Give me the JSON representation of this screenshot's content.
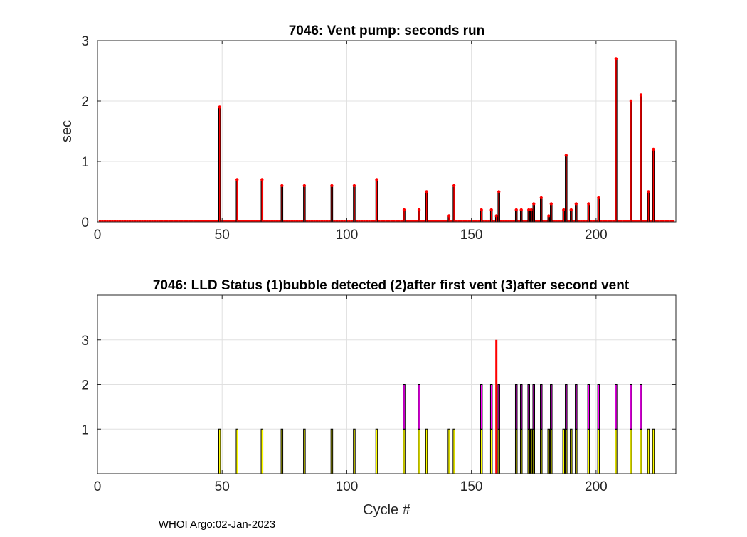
{
  "footer": "WHOI Argo:02-Jan-2023",
  "chart_data": [
    {
      "type": "bar",
      "title": "7046: Vent pump: seconds run",
      "xlabel": "",
      "ylabel": "sec",
      "xlim": [
        0,
        232
      ],
      "ylim": [
        0,
        3
      ],
      "xticks": [
        0,
        50,
        100,
        150,
        200
      ],
      "yticks": [
        0,
        1,
        2,
        3
      ],
      "grid": true,
      "cycle_range": [
        1,
        231
      ],
      "bar_color": "#ff0000",
      "marker_color": "#ff0000",
      "points": [
        [
          49,
          1.9
        ],
        [
          56,
          0.7
        ],
        [
          66,
          0.7
        ],
        [
          74,
          0.6
        ],
        [
          83,
          0.6
        ],
        [
          94,
          0.6
        ],
        [
          103,
          0.6
        ],
        [
          112,
          0.7
        ],
        [
          123,
          0.2
        ],
        [
          129,
          0.2
        ],
        [
          132,
          0.5
        ],
        [
          141,
          0.1
        ],
        [
          143,
          0.6
        ],
        [
          154,
          0.2
        ],
        [
          158,
          0.2
        ],
        [
          160,
          0.1
        ],
        [
          161,
          0.5
        ],
        [
          168,
          0.2
        ],
        [
          170,
          0.2
        ],
        [
          173,
          0.2
        ],
        [
          174,
          0.2
        ],
        [
          175,
          0.3
        ],
        [
          178,
          0.4
        ],
        [
          181,
          0.1
        ],
        [
          182,
          0.3
        ],
        [
          187,
          0.2
        ],
        [
          188,
          1.1
        ],
        [
          190,
          0.2
        ],
        [
          192,
          0.3
        ],
        [
          197,
          0.3
        ],
        [
          201,
          0.4
        ],
        [
          208,
          2.7
        ],
        [
          214,
          2.0
        ],
        [
          218,
          2.1
        ],
        [
          221,
          0.5
        ],
        [
          223,
          1.2
        ]
      ]
    },
    {
      "type": "bar",
      "title": "7046: LLD Status   (1)bubble detected   (2)after first vent  (3)after second vent",
      "xlabel": "Cycle #",
      "ylabel": "",
      "xlim": [
        0,
        232
      ],
      "ylim": [
        0,
        4
      ],
      "xticks": [
        0,
        50,
        100,
        150,
        200
      ],
      "yticks": [
        1,
        2,
        3
      ],
      "grid": true,
      "level_colors": {
        "1": "#ffff00",
        "2": "#ff00ff",
        "3": "#ff0000"
      },
      "points": [
        [
          49,
          1
        ],
        [
          56,
          1
        ],
        [
          66,
          1
        ],
        [
          74,
          1
        ],
        [
          83,
          1
        ],
        [
          94,
          1
        ],
        [
          103,
          1
        ],
        [
          112,
          1
        ],
        [
          123,
          2
        ],
        [
          129,
          2
        ],
        [
          132,
          1
        ],
        [
          141,
          1
        ],
        [
          143,
          1
        ],
        [
          154,
          2
        ],
        [
          158,
          2
        ],
        [
          160,
          3
        ],
        [
          161,
          2
        ],
        [
          168,
          2
        ],
        [
          170,
          2
        ],
        [
          173,
          2
        ],
        [
          174,
          1
        ],
        [
          175,
          2
        ],
        [
          178,
          2
        ],
        [
          181,
          1
        ],
        [
          182,
          2
        ],
        [
          187,
          1
        ],
        [
          188,
          2
        ],
        [
          190,
          1
        ],
        [
          192,
          2
        ],
        [
          197,
          2
        ],
        [
          201,
          2
        ],
        [
          208,
          2
        ],
        [
          214,
          2
        ],
        [
          218,
          2
        ],
        [
          221,
          1
        ],
        [
          223,
          1
        ]
      ]
    }
  ]
}
